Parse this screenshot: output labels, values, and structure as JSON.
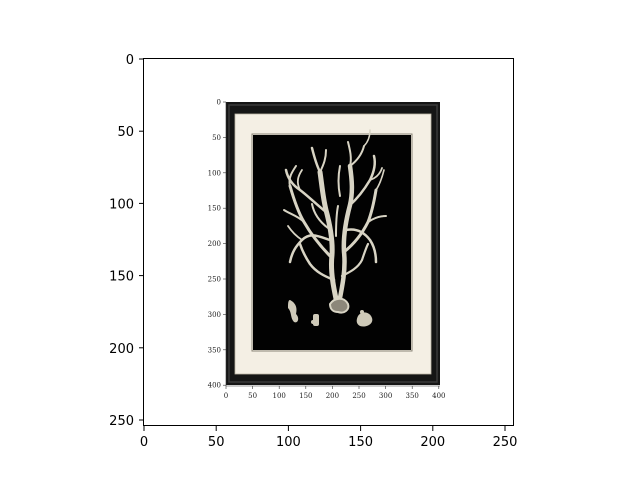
{
  "outer_axes": {
    "xticks": [
      "0",
      "50",
      "100",
      "150",
      "200",
      "250"
    ],
    "yticks": [
      "0",
      "50",
      "100",
      "150",
      "200",
      "250"
    ]
  },
  "inner_image_axes": {
    "xticks": [
      "0",
      "50",
      "100",
      "150",
      "200",
      "250",
      "300",
      "350",
      "400"
    ],
    "yticks": [
      "0",
      "50",
      "100",
      "150",
      "200",
      "250",
      "300",
      "350",
      "400"
    ]
  },
  "colors": {
    "frame": "#151515",
    "mat": "#f4efe4",
    "artwork_background": "#020202",
    "coral": "#d8d4c4"
  }
}
